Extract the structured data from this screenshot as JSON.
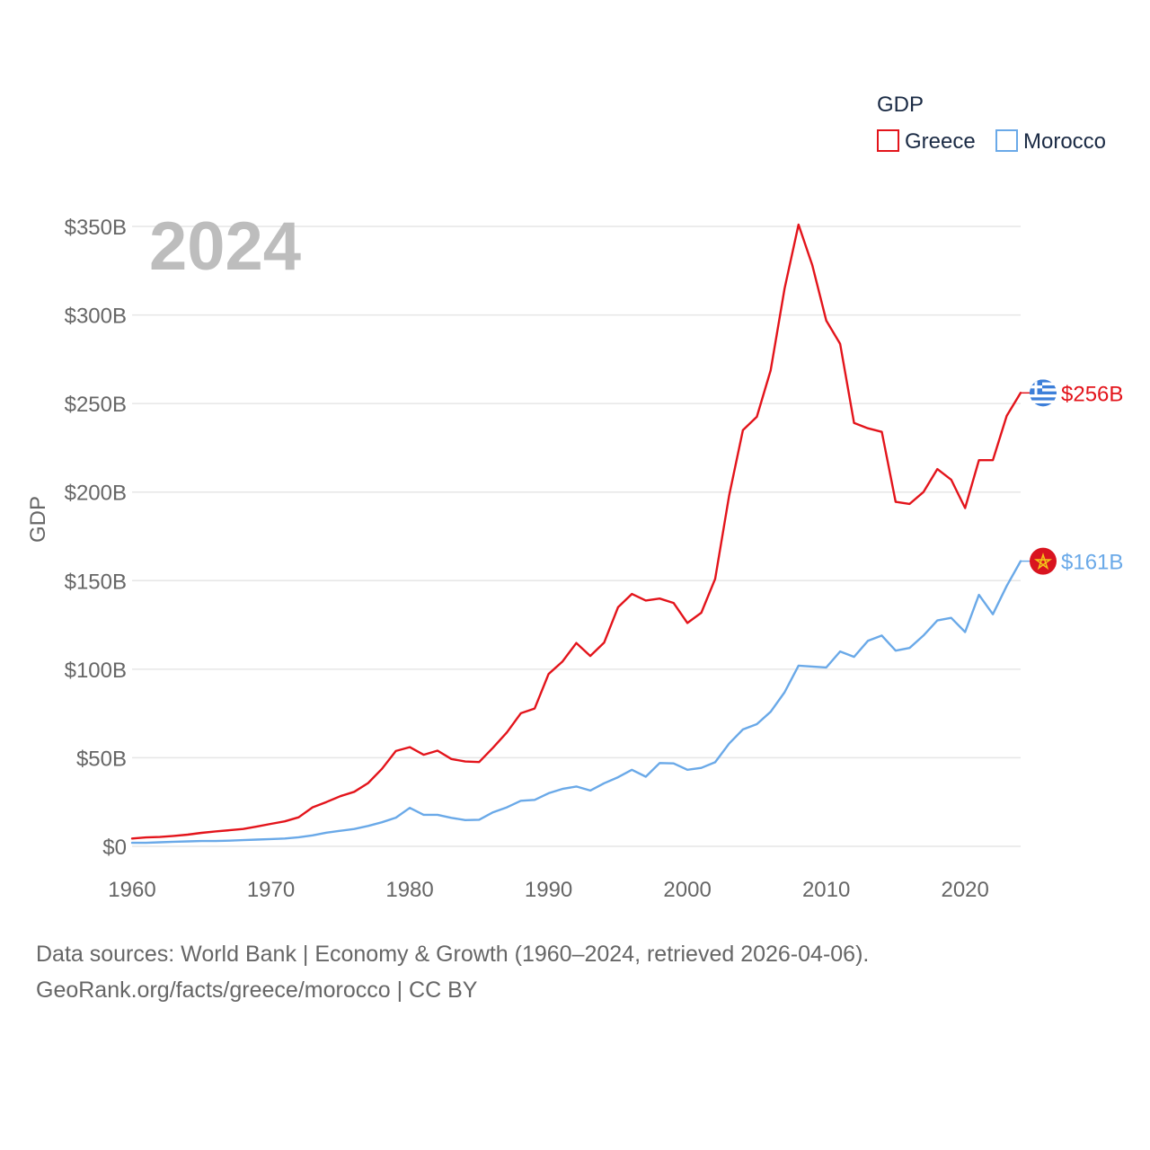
{
  "chart_data": {
    "type": "line",
    "title": "",
    "ylabel": "GDP",
    "xlabel": "",
    "year_overlay": "2024",
    "legend": {
      "title": "GDP",
      "placement": "top-right"
    },
    "xlim": [
      1960,
      2024
    ],
    "ylim": [
      0,
      350
    ],
    "x_ticks": [
      1960,
      1970,
      1980,
      1990,
      2000,
      2010,
      2020
    ],
    "y_ticks": [
      0,
      50,
      100,
      150,
      200,
      250,
      300,
      350
    ],
    "y_tick_labels": [
      "$0",
      "$50B",
      "$100B",
      "$150B",
      "$200B",
      "$250B",
      "$300B",
      "$350B"
    ],
    "grid": true,
    "x": [
      1960,
      1961,
      1962,
      1963,
      1964,
      1965,
      1966,
      1967,
      1968,
      1969,
      1970,
      1971,
      1972,
      1973,
      1974,
      1975,
      1976,
      1977,
      1978,
      1979,
      1980,
      1981,
      1982,
      1983,
      1984,
      1985,
      1986,
      1987,
      1988,
      1989,
      1990,
      1991,
      1992,
      1993,
      1994,
      1995,
      1996,
      1997,
      1998,
      1999,
      2000,
      2001,
      2002,
      2003,
      2004,
      2005,
      2006,
      2007,
      2008,
      2009,
      2010,
      2011,
      2012,
      2013,
      2014,
      2015,
      2016,
      2017,
      2018,
      2019,
      2020,
      2021,
      2022,
      2023,
      2024
    ],
    "series": [
      {
        "name": "Greece",
        "color": "#e3141b",
        "end_label": "$256B",
        "values": [
          4.4,
          5.0,
          5.3,
          5.9,
          6.6,
          7.6,
          8.4,
          9.1,
          9.8,
          11.2,
          12.7,
          14.1,
          16.4,
          22.0,
          25.0,
          28.3,
          30.8,
          35.7,
          43.8,
          53.8,
          56.0,
          51.7,
          54.0,
          49.3,
          47.9,
          47.6,
          55.7,
          64.3,
          75.1,
          77.8,
          97.3,
          104.3,
          114.8,
          107.5,
          115.0,
          135.0,
          142.5,
          138.8,
          139.9,
          137.4,
          126.1,
          131.9,
          151.0,
          197.9,
          235.0,
          242.5,
          268.8,
          315.0,
          351.0,
          328.0,
          296.8,
          283.7,
          239.0,
          236.0,
          234.0,
          194.5,
          193.3,
          200.0,
          213.0,
          207.0,
          191.0,
          218.0,
          218.0,
          243.0,
          256.0
        ]
      },
      {
        "name": "Morocco",
        "color": "#6aa9e8",
        "end_label": "$161B",
        "values": [
          2.0,
          2.0,
          2.3,
          2.6,
          2.8,
          3.0,
          3.0,
          3.2,
          3.5,
          3.8,
          4.1,
          4.4,
          5.1,
          6.2,
          7.7,
          8.8,
          9.8,
          11.5,
          13.6,
          16.2,
          21.7,
          17.8,
          17.8,
          16.1,
          14.8,
          15.0,
          19.2,
          22.0,
          25.7,
          26.2,
          30.0,
          32.4,
          33.8,
          31.5,
          35.6,
          39.0,
          43.2,
          39.3,
          47.0,
          46.8,
          43.2,
          44.3,
          47.5,
          58.0,
          66.0,
          69.0,
          76.0,
          87.0,
          102.0,
          101.5,
          101.0,
          110.0,
          107.0,
          116.0,
          119.0,
          110.5,
          112.0,
          119.0,
          127.5,
          129.0,
          121.0,
          142.0,
          131.0,
          147.0,
          161.0
        ]
      }
    ]
  },
  "footer": {
    "line1": "Data sources: World Bank | Economy & Growth (1960–2024, retrieved 2026-04-06).",
    "line2": "GeoRank.org/facts/greece/morocco | CC BY"
  }
}
